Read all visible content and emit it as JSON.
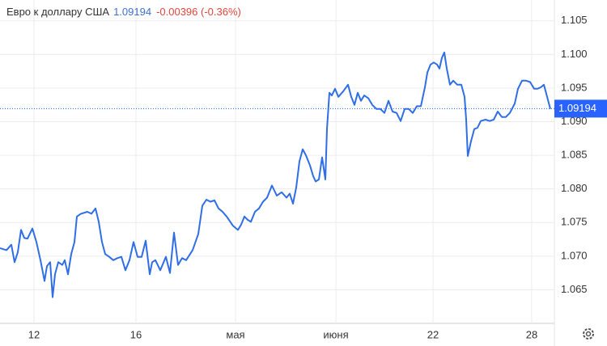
{
  "chart_data": {
    "type": "line",
    "title": "Евро к доллару США",
    "last_price": 1.09194,
    "change_text": "-0.00396 (-0.36%)",
    "color": "#2f6ee5",
    "price_tag_color": "#2962ff",
    "xlim": [
      0,
      685
    ],
    "ylim": [
      1.06,
      1.1081
    ],
    "xticks": [
      {
        "value": 42,
        "label": "12"
      },
      {
        "value": 168,
        "label": "16"
      },
      {
        "value": 291,
        "label": "мая"
      },
      {
        "value": 415,
        "label": "июня"
      },
      {
        "value": 535,
        "label": "22"
      },
      {
        "value": 657,
        "label": "28"
      }
    ],
    "yticks": [
      {
        "value": 1.065,
        "label": "1.065"
      },
      {
        "value": 1.07,
        "label": "1.070"
      },
      {
        "value": 1.075,
        "label": "1.075"
      },
      {
        "value": 1.08,
        "label": "1.080"
      },
      {
        "value": 1.085,
        "label": "1.085"
      },
      {
        "value": 1.09,
        "label": "1.090"
      },
      {
        "value": 1.095,
        "label": "1.095"
      },
      {
        "value": 1.1,
        "label": "1.100"
      },
      {
        "value": 1.105,
        "label": "1.105"
      }
    ],
    "grid": true,
    "x": [
      0,
      8,
      14,
      18,
      22,
      26,
      30,
      34,
      40,
      45,
      50,
      55,
      58,
      62,
      65,
      68,
      72,
      77,
      80,
      84,
      88,
      92,
      95,
      100,
      108,
      113,
      118,
      122,
      126,
      130,
      135,
      140,
      145,
      150,
      155,
      160,
      165,
      170,
      175,
      180,
      185,
      188,
      192,
      198,
      205,
      210,
      215,
      220,
      225,
      230,
      238,
      245,
      250,
      255,
      260,
      265,
      270,
      275,
      280,
      288,
      294,
      298,
      302,
      306,
      310,
      315,
      320,
      325,
      330,
      336,
      342,
      348,
      354,
      358,
      362,
      366,
      370,
      374,
      378,
      383,
      387,
      390,
      394,
      398,
      402,
      404,
      407,
      410,
      414,
      418,
      424,
      430,
      434,
      438,
      442,
      446,
      450,
      455,
      460,
      465,
      470,
      475,
      480,
      485,
      490,
      495,
      500,
      505,
      510,
      515,
      520,
      525,
      528,
      532,
      536,
      540,
      543,
      546,
      549,
      552,
      556,
      560,
      565,
      570,
      574,
      576,
      578,
      582,
      586,
      590,
      594,
      600,
      605,
      610,
      615,
      620,
      625,
      630,
      636,
      640,
      645,
      650,
      655,
      660,
      664,
      668,
      672,
      676,
      680
    ],
    "values": [
      1.0712,
      1.0709,
      1.0717,
      1.0691,
      1.0706,
      1.0739,
      1.0727,
      1.0726,
      1.0741,
      1.0721,
      1.0694,
      1.0663,
      1.0685,
      1.0691,
      1.0639,
      1.0673,
      1.0691,
      1.0687,
      1.0694,
      1.0673,
      1.0703,
      1.0721,
      1.0759,
      1.0763,
      1.0766,
      1.0763,
      1.0771,
      1.0751,
      1.0721,
      1.0703,
      1.0699,
      1.0694,
      1.0697,
      1.0699,
      1.0679,
      1.0694,
      1.0721,
      1.0699,
      1.0699,
      1.0723,
      1.0673,
      1.0691,
      1.0694,
      1.0679,
      1.0699,
      1.0675,
      1.0735,
      1.0687,
      1.0697,
      1.0694,
      1.0709,
      1.0733,
      1.0775,
      1.0784,
      1.0781,
      1.0783,
      1.0771,
      1.0766,
      1.0759,
      1.0745,
      1.0739,
      1.0747,
      1.0759,
      1.0754,
      1.0751,
      1.0766,
      1.0771,
      1.0781,
      1.0787,
      1.0805,
      1.079,
      1.0795,
      1.0787,
      1.0793,
      1.0778,
      1.0802,
      1.0841,
      1.0859,
      1.085,
      1.0835,
      1.0819,
      1.0811,
      1.0814,
      1.0847,
      1.0814,
      1.0889,
      1.0943,
      1.0939,
      1.0949,
      1.0937,
      1.0945,
      1.0955,
      1.0937,
      1.0925,
      1.0943,
      1.0931,
      1.0939,
      1.0935,
      1.0925,
      1.0919,
      1.0919,
      1.0913,
      1.0931,
      1.0915,
      1.0913,
      1.0901,
      1.0919,
      1.0919,
      1.0913,
      1.0923,
      1.0923,
      1.0951,
      1.0973,
      1.0985,
      1.0988,
      1.0985,
      1.0979,
      1.0995,
      1.1003,
      1.0979,
      1.0955,
      1.0961,
      1.0955,
      1.0955,
      1.0937,
      1.0903,
      1.0849,
      1.0871,
      1.0889,
      1.0891,
      1.0901,
      1.0903,
      1.0901,
      1.0903,
      1.0915,
      1.0907,
      1.0907,
      1.0913,
      1.0927,
      1.0949,
      1.0961,
      1.0961,
      1.0959,
      1.0949,
      1.0949,
      1.0951,
      1.0955,
      1.0937,
      1.0919
    ]
  }
}
